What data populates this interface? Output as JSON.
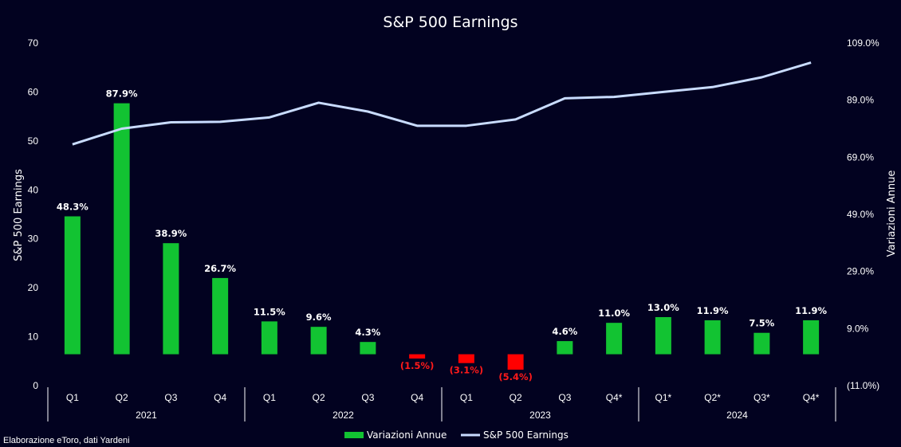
{
  "chart_data": {
    "type": "bar+line",
    "title": "S&P 500 Earnings",
    "source_note": "Elaborazione eToro, dati Yardeni",
    "y_left": {
      "label": "S&P 500 Earnings",
      "range": [
        0,
        70
      ],
      "ticks": [
        "0",
        "10",
        "20",
        "30",
        "40",
        "50",
        "60",
        "70"
      ]
    },
    "y_right": {
      "label": "Variazioni Annue",
      "range": [
        -11,
        109
      ],
      "ticks": [
        "(11.0%)",
        "9.0%",
        "29.0%",
        "49.0%",
        "69.0%",
        "89.0%",
        "109.0%"
      ]
    },
    "quarters": [
      "Q1",
      "Q2",
      "Q3",
      "Q4",
      "Q1",
      "Q2",
      "Q3",
      "Q4",
      "Q1",
      "Q2",
      "Q3",
      "Q4*",
      "Q1*",
      "Q2*",
      "Q3*",
      "Q4*"
    ],
    "years": [
      "2021",
      "2022",
      "2023",
      "2024"
    ],
    "series": [
      {
        "name": "Variazioni Annue",
        "kind": "bar",
        "axis": "right",
        "color_positive": "#12c332",
        "color_negative": "#ff0000",
        "values": [
          48.3,
          87.9,
          38.9,
          26.7,
          11.5,
          9.6,
          4.3,
          -1.5,
          -3.1,
          -5.4,
          4.6,
          11.0,
          13.0,
          11.9,
          7.5,
          11.9
        ],
        "labels": [
          "48.3%",
          "87.9%",
          "38.9%",
          "26.7%",
          "11.5%",
          "9.6%",
          "4.3%",
          "(1.5%)",
          "(3.1%)",
          "(5.4%)",
          "4.6%",
          "11.0%",
          "13.0%",
          "11.9%",
          "7.5%",
          "11.9%"
        ]
      },
      {
        "name": "S&P 500 Earnings",
        "kind": "line",
        "axis": "left",
        "color": "#c9dcff",
        "values": [
          49.3,
          52.5,
          53.8,
          53.9,
          54.8,
          57.8,
          56.0,
          53.1,
          53.1,
          54.4,
          58.7,
          59.0,
          60.0,
          61.0,
          63.0,
          66.0
        ]
      }
    ],
    "grid": false,
    "legend_position": "bottom"
  }
}
